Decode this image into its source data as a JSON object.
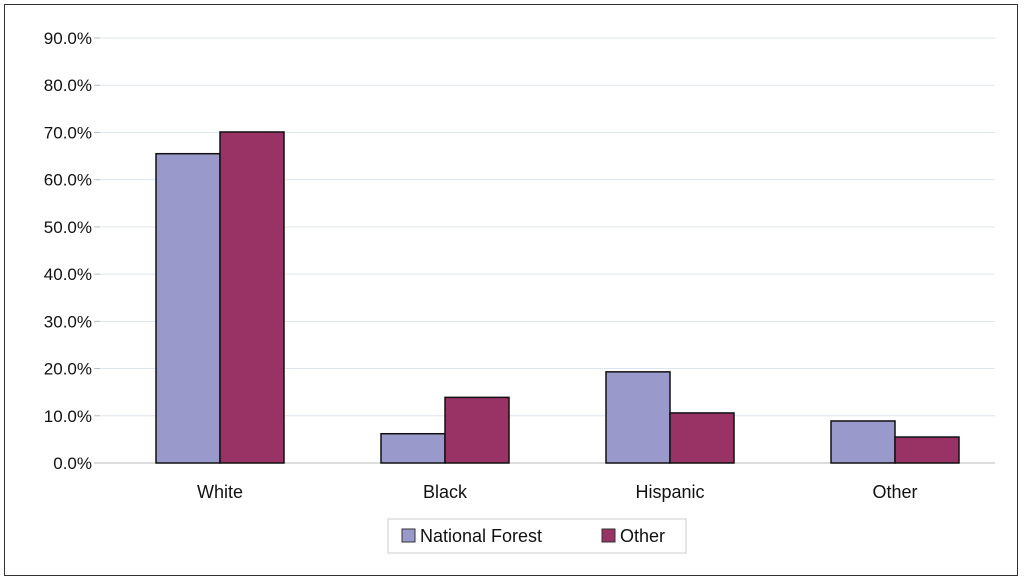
{
  "chart_data": {
    "type": "bar",
    "categories": [
      "White",
      "Black",
      "Hispanic",
      "Other"
    ],
    "series": [
      {
        "name": "National Forest",
        "values": [
          65.5,
          6.2,
          19.3,
          8.9
        ],
        "color": "#9999cc"
      },
      {
        "name": "Other",
        "values": [
          70.1,
          13.9,
          10.6,
          5.5
        ],
        "color": "#993366"
      }
    ],
    "ylim": [
      0,
      90
    ],
    "yticks": [
      0,
      10,
      20,
      30,
      40,
      50,
      60,
      70,
      80,
      90
    ],
    "ytick_labels": [
      "0.0%",
      "10.0%",
      "20.0%",
      "30.0%",
      "40.0%",
      "50.0%",
      "60.0%",
      "70.0%",
      "80.0%",
      "90.0%"
    ],
    "grid": true,
    "legend_position": "bottom-center"
  }
}
